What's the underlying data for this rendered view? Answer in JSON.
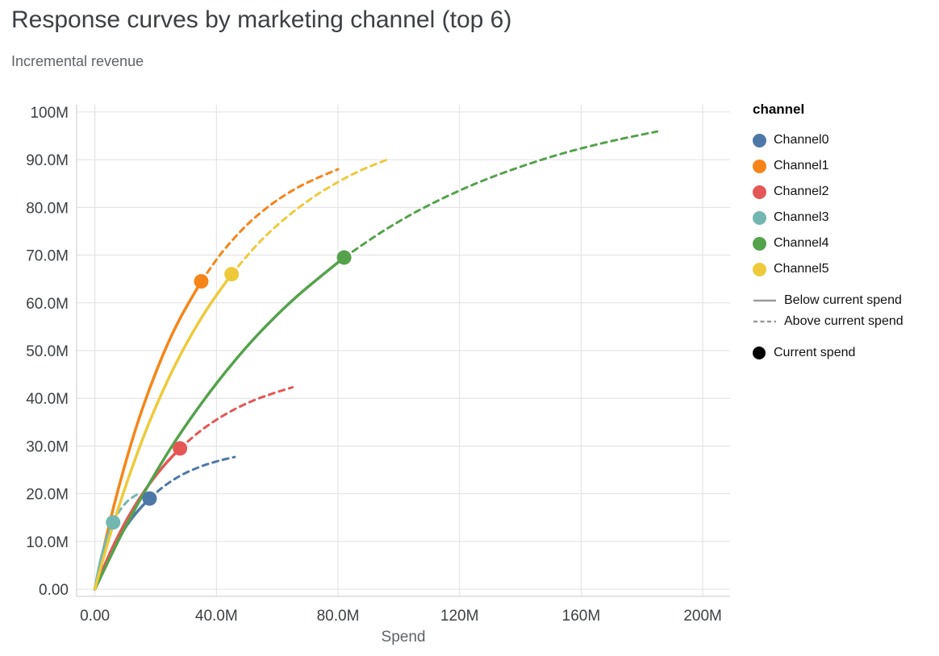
{
  "chart_data": {
    "type": "line",
    "title": "Response curves by marketing channel (top 6)",
    "subtitle": "Incremental revenue",
    "xlabel": "Spend",
    "ylabel": "Incremental revenue",
    "units": "millions",
    "grid": true,
    "legend_position": "right",
    "xlim": [
      -6,
      209
    ],
    "ylim": [
      -1.5,
      101.5
    ],
    "x_ticks": [
      0,
      40,
      80,
      120,
      160,
      200
    ],
    "x_tick_labels": [
      "0.00",
      "40.0M",
      "80.0M",
      "120M",
      "160M",
      "200M"
    ],
    "y_ticks": [
      0,
      10,
      20,
      30,
      40,
      50,
      60,
      70,
      80,
      90,
      100
    ],
    "y_tick_labels": [
      "0.00",
      "10.0M",
      "20.0M",
      "30.0M",
      "40.0M",
      "50.0M",
      "60.0M",
      "70.0M",
      "80.0M",
      "90.0M",
      "100M"
    ],
    "legend": {
      "title": "channel",
      "style_entries": [
        {
          "label": "Below current spend",
          "dash": false
        },
        {
          "label": "Above current spend",
          "dash": true
        }
      ],
      "point_entry": {
        "label": "Current spend",
        "color": "#000000"
      },
      "line_sample_color": "#9a9a9a"
    },
    "series": [
      {
        "name": "Channel0",
        "color": "#4c78a8",
        "current_spend": {
          "x": 18,
          "y": 19.0
        },
        "points": [
          [
            0,
            0
          ],
          [
            2,
            3.2
          ],
          [
            4,
            6.0
          ],
          [
            6,
            8.5
          ],
          [
            9,
            11.9
          ],
          [
            12,
            14.7
          ],
          [
            15,
            17.0
          ],
          [
            18,
            19.0
          ],
          [
            22,
            21.2
          ],
          [
            26,
            23.0
          ],
          [
            30,
            24.4
          ],
          [
            34,
            25.5
          ],
          [
            38,
            26.4
          ],
          [
            42,
            27.1
          ],
          [
            46,
            27.7
          ]
        ]
      },
      {
        "name": "Channel1",
        "color": "#f58518",
        "current_spend": {
          "x": 35,
          "y": 64.5
        },
        "points": [
          [
            0,
            0
          ],
          [
            3,
            8.8
          ],
          [
            6,
            16.8
          ],
          [
            10,
            26.3
          ],
          [
            14,
            34.7
          ],
          [
            18,
            42.0
          ],
          [
            23,
            50.0
          ],
          [
            28,
            56.7
          ],
          [
            35,
            64.5
          ],
          [
            42,
            70.7
          ],
          [
            50,
            76.3
          ],
          [
            58,
            80.6
          ],
          [
            66,
            83.9
          ],
          [
            73,
            86.1
          ],
          [
            80,
            88.0
          ]
        ]
      },
      {
        "name": "Channel2",
        "color": "#e45756",
        "current_spend": {
          "x": 28,
          "y": 29.5
        },
        "points": [
          [
            0,
            0
          ],
          [
            3,
            4.7
          ],
          [
            6,
            9.0
          ],
          [
            10,
            14.0
          ],
          [
            14,
            18.3
          ],
          [
            18,
            22.1
          ],
          [
            23,
            26.1
          ],
          [
            28,
            29.5
          ],
          [
            34,
            32.8
          ],
          [
            40,
            35.5
          ],
          [
            46,
            37.7
          ],
          [
            52,
            39.5
          ],
          [
            58,
            40.9
          ],
          [
            65,
            42.3
          ]
        ]
      },
      {
        "name": "Channel3",
        "color": "#72b7b2",
        "current_spend": {
          "x": 6,
          "y": 14.0
        },
        "points": [
          [
            0,
            0
          ],
          [
            1,
            3.4
          ],
          [
            2,
            6.3
          ],
          [
            3,
            8.7
          ],
          [
            4.5,
            11.7
          ],
          [
            6,
            14.0
          ],
          [
            7.5,
            15.8
          ],
          [
            9,
            17.2
          ],
          [
            11,
            18.6
          ],
          [
            13,
            19.5
          ],
          [
            15,
            20.3
          ]
        ]
      },
      {
        "name": "Channel4",
        "color": "#54a24b",
        "current_spend": {
          "x": 82,
          "y": 69.5
        },
        "points": [
          [
            0,
            0
          ],
          [
            8,
            10.5
          ],
          [
            16,
            20.0
          ],
          [
            25,
            29.6
          ],
          [
            34,
            38.0
          ],
          [
            44,
            46.3
          ],
          [
            54,
            53.6
          ],
          [
            66,
            61.1
          ],
          [
            82,
            69.5
          ],
          [
            96,
            75.5
          ],
          [
            110,
            80.5
          ],
          [
            125,
            84.9
          ],
          [
            140,
            88.5
          ],
          [
            155,
            91.5
          ],
          [
            170,
            93.9
          ],
          [
            185,
            95.9
          ]
        ]
      },
      {
        "name": "Channel5",
        "color": "#eeca3b",
        "current_spend": {
          "x": 45,
          "y": 66.0
        },
        "points": [
          [
            0,
            0
          ],
          [
            4,
            9.2
          ],
          [
            8,
            17.5
          ],
          [
            13,
            26.8
          ],
          [
            18,
            35.1
          ],
          [
            24,
            43.8
          ],
          [
            30,
            51.3
          ],
          [
            37,
            58.8
          ],
          [
            45,
            66.0
          ],
          [
            54,
            72.6
          ],
          [
            63,
            77.9
          ],
          [
            72,
            82.2
          ],
          [
            80,
            85.3
          ],
          [
            88,
            87.9
          ],
          [
            97,
            90.2
          ]
        ]
      }
    ]
  }
}
